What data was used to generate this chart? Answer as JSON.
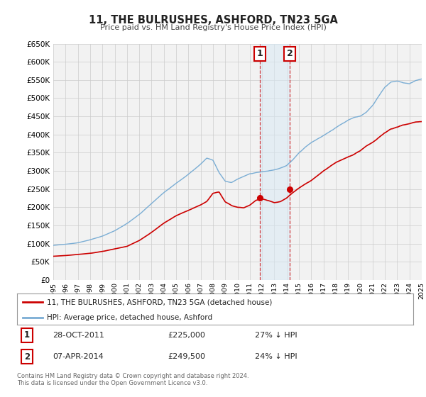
{
  "title": "11, THE BULRUSHES, ASHFORD, TN23 5GA",
  "subtitle": "Price paid vs. HM Land Registry's House Price Index (HPI)",
  "legend_label_red": "11, THE BULRUSHES, ASHFORD, TN23 5GA (detached house)",
  "legend_label_blue": "HPI: Average price, detached house, Ashford",
  "annotation1_date": "28-OCT-2011",
  "annotation1_price": "£225,000",
  "annotation1_hpi": "27% ↓ HPI",
  "annotation2_date": "07-APR-2014",
  "annotation2_price": "£249,500",
  "annotation2_hpi": "24% ↓ HPI",
  "footnote1": "Contains HM Land Registry data © Crown copyright and database right 2024.",
  "footnote2": "This data is licensed under the Open Government Licence v3.0.",
  "red_color": "#cc0000",
  "blue_color": "#7aadd4",
  "shading_color": "#d8eaf5",
  "grid_color": "#cccccc",
  "background_color": "#ffffff",
  "plot_bg_color": "#f2f2f2",
  "ylim": [
    0,
    650000
  ],
  "x_start_year": 1995,
  "x_end_year": 2025,
  "transaction1_year": 2011.83,
  "transaction2_year": 2014.27,
  "t1_val": 225000,
  "t2_val": 249500,
  "blue_key_years": [
    1995,
    1996,
    1997,
    1998,
    1999,
    2000,
    2001,
    2002,
    2003,
    2004,
    2005,
    2006,
    2007,
    2007.5,
    2008,
    2008.5,
    2009,
    2009.5,
    2010,
    2010.5,
    2011,
    2011.5,
    2012,
    2012.5,
    2013,
    2013.5,
    2014,
    2014.5,
    2015,
    2015.5,
    2016,
    2016.5,
    2017,
    2017.5,
    2018,
    2018.5,
    2019,
    2019.5,
    2020,
    2020.5,
    2021,
    2021.5,
    2022,
    2022.5,
    2023,
    2023.5,
    2024,
    2024.5,
    2025
  ],
  "blue_key_vals": [
    95000,
    98000,
    102000,
    110000,
    120000,
    135000,
    155000,
    180000,
    210000,
    240000,
    265000,
    290000,
    318000,
    335000,
    330000,
    295000,
    272000,
    268000,
    278000,
    285000,
    292000,
    296000,
    298000,
    300000,
    303000,
    308000,
    315000,
    330000,
    350000,
    365000,
    378000,
    388000,
    398000,
    408000,
    418000,
    428000,
    438000,
    445000,
    448000,
    460000,
    478000,
    505000,
    530000,
    545000,
    548000,
    542000,
    540000,
    548000,
    552000
  ],
  "red_key_years": [
    1995,
    1996,
    1997,
    1998,
    1999,
    2000,
    2001,
    2002,
    2003,
    2004,
    2005,
    2006,
    2007,
    2007.5,
    2008,
    2008.5,
    2009,
    2009.5,
    2010,
    2010.5,
    2011,
    2011.5,
    2012,
    2012.5,
    2013,
    2013.5,
    2014,
    2014.5,
    2015,
    2015.5,
    2016,
    2016.5,
    2017,
    2017.5,
    2018,
    2018.5,
    2019,
    2019.5,
    2020,
    2020.5,
    2021,
    2021.5,
    2022,
    2022.5,
    2023,
    2023.5,
    2024,
    2024.5,
    2025
  ],
  "red_key_vals": [
    65000,
    67000,
    70000,
    73000,
    78000,
    85000,
    92000,
    108000,
    130000,
    155000,
    175000,
    190000,
    205000,
    215000,
    238000,
    242000,
    215000,
    205000,
    200000,
    198000,
    205000,
    218000,
    222000,
    218000,
    212000,
    215000,
    225000,
    240000,
    252000,
    262000,
    272000,
    285000,
    298000,
    310000,
    322000,
    330000,
    338000,
    345000,
    355000,
    368000,
    378000,
    392000,
    405000,
    415000,
    420000,
    425000,
    428000,
    432000,
    433000
  ]
}
